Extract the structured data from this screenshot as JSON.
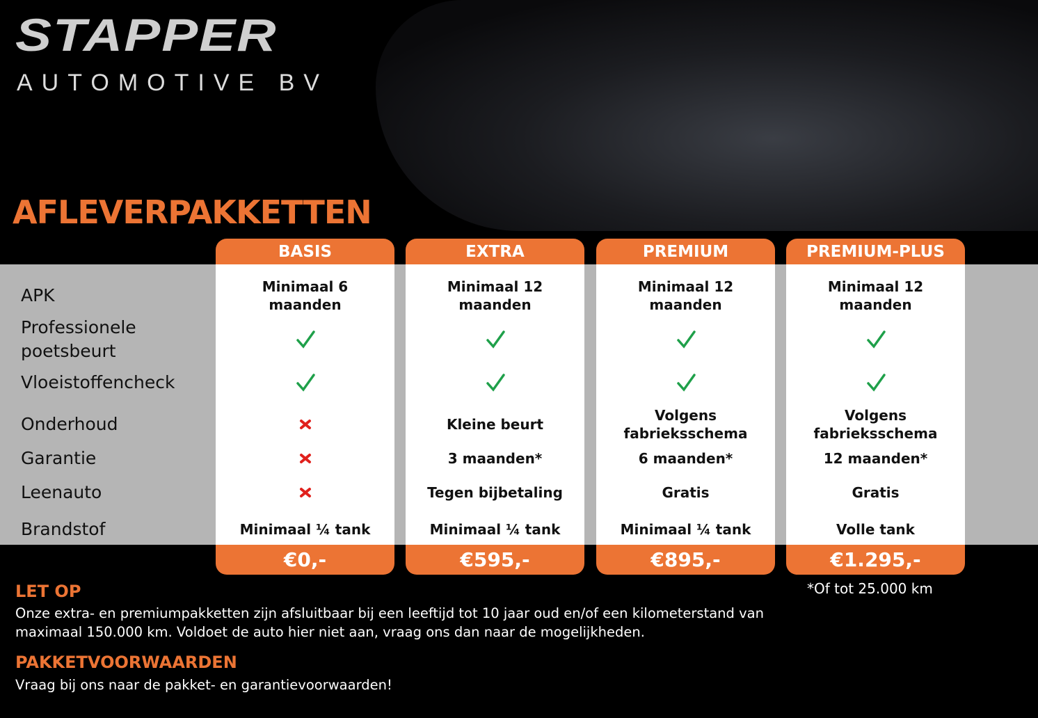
{
  "logo": {
    "name": "STAPPER",
    "subtitle": "AUTOMOTIVE BV"
  },
  "title": "AFLEVERPAKKETTEN",
  "packages": [
    {
      "name": "BASIS",
      "price": "€0,-"
    },
    {
      "name": "EXTRA",
      "price": "€595,-"
    },
    {
      "name": "PREMIUM",
      "price": "€895,-"
    },
    {
      "name": "PREMIUM-PLUS",
      "price": "€1.295,-"
    }
  ],
  "rows": [
    {
      "label": "APK",
      "cells": [
        "Minimaal 6 maanden",
        "Minimaal 12 maanden",
        "Minimaal 12 maanden",
        "Minimaal 12 maanden"
      ]
    },
    {
      "label": "Professionele poetsbeurt",
      "cells": [
        true,
        true,
        true,
        true
      ]
    },
    {
      "label": "Vloeistoffencheck",
      "cells": [
        true,
        true,
        true,
        true
      ]
    },
    {
      "label": "Onderhoud",
      "cells": [
        false,
        "Kleine beurt",
        "Volgens fabrieksschema",
        "Volgens fabrieksschema"
      ]
    },
    {
      "label": "Garantie",
      "cells": [
        false,
        "3 maanden*",
        "6 maanden*",
        "12 maanden*"
      ]
    },
    {
      "label": "Leenauto",
      "cells": [
        false,
        "Tegen bijbetaling",
        "Gratis",
        "Gratis"
      ]
    },
    {
      "label": "Brandstof",
      "cells": [
        "Minimaal ¼ tank",
        "Minimaal ¼ tank",
        "Minimaal ¼ tank",
        "Volle tank"
      ]
    }
  ],
  "footnote": "*Of tot 25.000 km",
  "notes": [
    {
      "heading": "LET OP",
      "text": "Onze extra- en premiumpakketten zijn afsluitbaar bij een leeftijd tot 10 jaar oud en/of een kilometerstand van maximaal 150.000 km. Voldoet de auto hier niet aan, vraag ons dan naar de mogelijkheden."
    },
    {
      "heading": "PAKKETVOORWAARDEN",
      "text": "Vraag bij ons naar de pakket- en garantievoorwaarden!"
    }
  ]
}
